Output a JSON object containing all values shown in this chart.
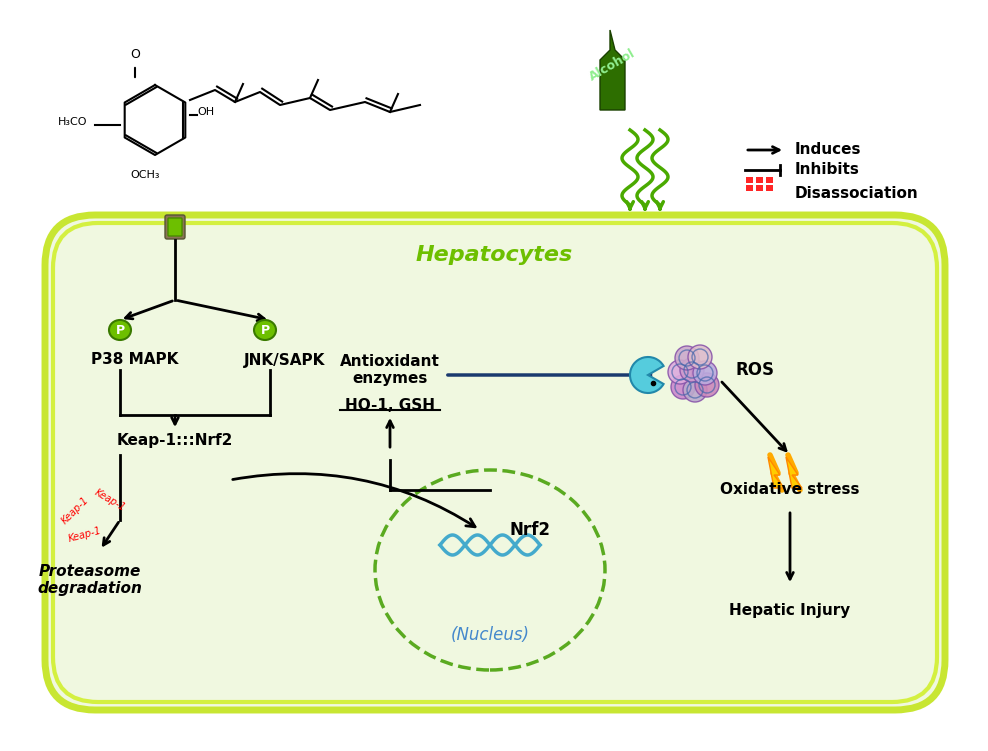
{
  "fig_width": 9.88,
  "fig_height": 7.51,
  "cell_color": "#c8e632",
  "cell_bg": "#f0f8e0",
  "nucleus_color": "#7dc832",
  "dark_green": "#2d6e00",
  "p_badge_color": "#6dbf00",
  "arrow_color": "#111111",
  "blue_line_color": "#1a3a6e",
  "legend_arrow": "Induces",
  "legend_inhibit": "Inhibits",
  "legend_dissoc": "Disassociation",
  "hepatocytes_label": "Hepatocytes",
  "nucleus_label": "(Nucleus)",
  "text_p38": "P38 MAPK",
  "text_jnk": "JNK/SAPK",
  "text_keap": "Keap-1:::Nrf2",
  "text_proteasome": "Proteasome\ndegradation",
  "text_nrf2": "Nrf2",
  "text_antioxidant": "Antioxidant\nenzymes",
  "text_ho1": "HO-1, GSH",
  "text_ros": "ROS",
  "text_oxidative": "Oxidative stress",
  "text_hepatic": "Hepatic Injury",
  "text_alcohol": "Alcohol"
}
